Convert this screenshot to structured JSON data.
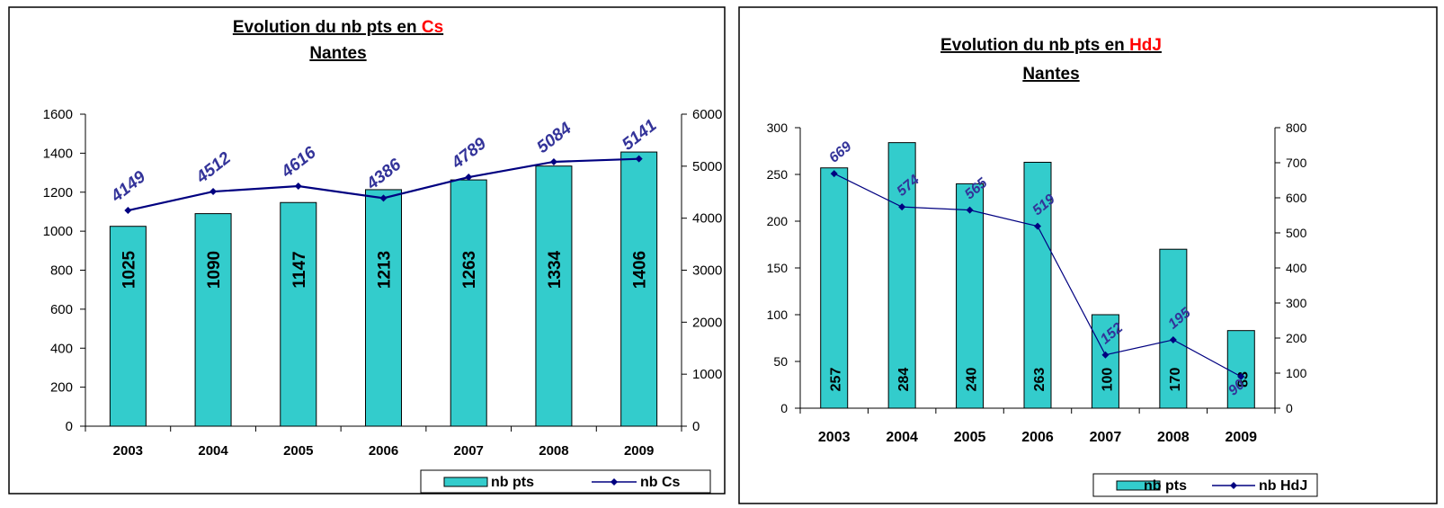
{
  "colors": {
    "bar_fill": "#33CCCC",
    "bar_stroke": "#000000",
    "line": "#000080",
    "line_label": "#333399",
    "title_highlight": "#FF0000"
  },
  "chart_data": [
    {
      "type": "bar",
      "combo": "bar+line (secondary axis)",
      "title_prefix": "Evolution du nb pts en ",
      "title_highlight": "Cs",
      "subtitle": "Nantes",
      "categories": [
        "2003",
        "2004",
        "2005",
        "2006",
        "2007",
        "2008",
        "2009"
      ],
      "series": [
        {
          "name": "nb pts",
          "type": "bar",
          "axis": "left",
          "values": [
            1025,
            1090,
            1147,
            1213,
            1263,
            1334,
            1406
          ]
        },
        {
          "name": "nb Cs",
          "type": "line",
          "axis": "right",
          "values": [
            4149,
            4512,
            4616,
            4386,
            4789,
            5084,
            5141
          ]
        }
      ],
      "ylim": [
        0,
        1600
      ],
      "yticks": [
        "0",
        "200",
        "400",
        "600",
        "800",
        "1000",
        "1200",
        "1400",
        "1600"
      ],
      "y2lim": [
        0,
        6000
      ],
      "y2ticks": [
        "0",
        "1000",
        "2000",
        "3000",
        "4000",
        "5000",
        "6000"
      ],
      "grid": false,
      "legend": "bottom-right"
    },
    {
      "type": "bar",
      "combo": "bar+line (secondary axis)",
      "title_prefix": "Evolution du nb pts en ",
      "title_highlight": "HdJ",
      "subtitle": "Nantes",
      "categories": [
        "2003",
        "2004",
        "2005",
        "2006",
        "2007",
        "2008",
        "2009"
      ],
      "series": [
        {
          "name": "nb pts",
          "type": "bar",
          "axis": "left",
          "values": [
            257,
            284,
            240,
            263,
            100,
            170,
            83
          ]
        },
        {
          "name": "nb HdJ",
          "type": "line",
          "axis": "right",
          "values": [
            669,
            574,
            565,
            519,
            152,
            195,
            90
          ]
        }
      ],
      "ylim": [
        0,
        300
      ],
      "yticks": [
        "0",
        "50",
        "100",
        "150",
        "200",
        "250",
        "300"
      ],
      "y2lim": [
        0,
        800
      ],
      "y2ticks": [
        "0",
        "100",
        "200",
        "300",
        "400",
        "500",
        "600",
        "700",
        "800"
      ],
      "grid": false,
      "legend": "bottom-right"
    }
  ]
}
